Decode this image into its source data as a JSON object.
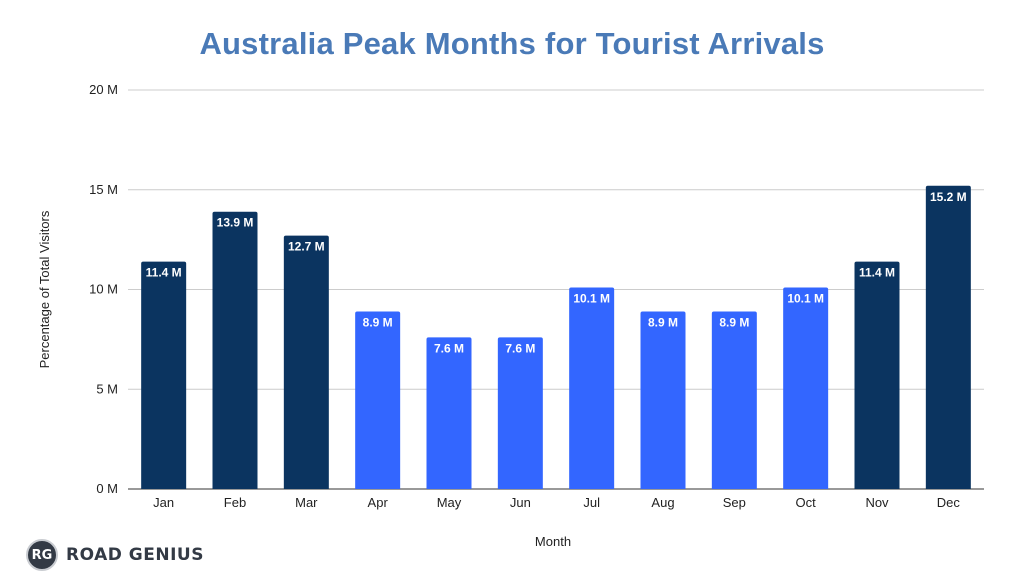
{
  "chart_data": {
    "type": "bar",
    "title": "Australia Peak Months for Tourist Arrivals",
    "xlabel": "Month",
    "ylabel": "Percentage of Total Visitors",
    "categories": [
      "Jan",
      "Feb",
      "Mar",
      "Apr",
      "May",
      "Jun",
      "Jul",
      "Aug",
      "Sep",
      "Oct",
      "Nov",
      "Dec"
    ],
    "values": [
      11.4,
      13.9,
      12.7,
      8.9,
      7.6,
      7.6,
      10.1,
      8.9,
      8.9,
      10.1,
      11.4,
      15.2
    ],
    "data_labels": [
      "11.4 M",
      "13.9 M",
      "12.7 M",
      "8.9 M",
      "7.6 M",
      "7.6 M",
      "10.1 M",
      "8.9 M",
      "8.9 M",
      "10.1 M",
      "11.4 M",
      "15.2 M"
    ],
    "yticks": [
      0,
      5,
      10,
      15,
      20
    ],
    "ytick_labels": [
      "0 M",
      "5 M",
      "10 M",
      "15 M",
      "20 M"
    ],
    "ylim": [
      0,
      20
    ],
    "grid": true,
    "bar_colors": [
      "#0b3460",
      "#0b3460",
      "#0b3460",
      "#3366ff",
      "#3366ff",
      "#3366ff",
      "#3366ff",
      "#3366ff",
      "#3366ff",
      "#3366ff",
      "#0b3460",
      "#0b3460"
    ]
  },
  "logo": {
    "badge": "RG",
    "text": "ROAD GENIUS"
  }
}
